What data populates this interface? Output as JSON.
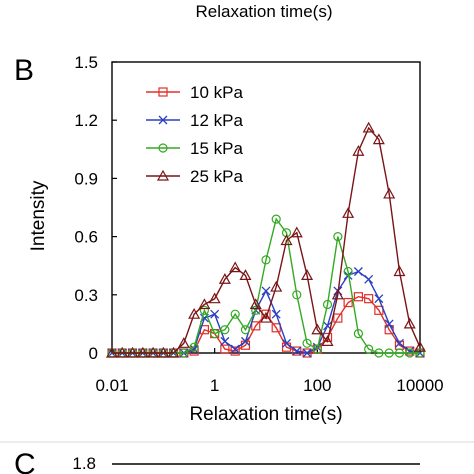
{
  "top_partial": {
    "xlabel": "Relaxation time(s)"
  },
  "panel_b": {
    "label": "B"
  },
  "panel_c": {
    "label": "C",
    "first_tick": "1.8"
  },
  "colors": {
    "10kPa": "#e0302a",
    "12kPa": "#2a3fbf",
    "15kPa": "#33aa22",
    "25kPa": "#7a1416"
  },
  "chart_data": {
    "type": "line",
    "x_scale": "log",
    "xlabel": "Relaxation time(s)",
    "ylabel": "Intensity",
    "xlim": [
      0.01,
      10000
    ],
    "ylim": [
      0,
      1.5
    ],
    "xticks": [
      0.01,
      1,
      100,
      10000
    ],
    "xtick_labels": [
      "0.01",
      "1",
      "100",
      "10000"
    ],
    "yticks": [
      0,
      0.3,
      0.6,
      0.9,
      1.2,
      1.5
    ],
    "ytick_labels": [
      "0",
      "0.3",
      "0.6",
      "0.9",
      "1.2",
      "1.5"
    ],
    "grid": false,
    "legend_position": "top-left",
    "series": [
      {
        "name": "10 kPa",
        "marker": "square",
        "color_key": "10kPa",
        "x": [
          0.01,
          0.0158,
          0.0251,
          0.0398,
          0.0631,
          0.1,
          0.158,
          0.251,
          0.398,
          0.631,
          1,
          1.58,
          2.51,
          3.98,
          6.31,
          10,
          15.8,
          25.1,
          39.8,
          63.1,
          100,
          158,
          251,
          398,
          631,
          1000,
          1580,
          2510,
          3980,
          6310,
          10000
        ],
        "y": [
          0,
          0,
          0,
          0,
          0,
          0,
          0,
          0,
          0.01,
          0.12,
          0.1,
          0.02,
          0.01,
          0.04,
          0.14,
          0.2,
          0.13,
          0.03,
          0.01,
          0,
          0.02,
          0.08,
          0.18,
          0.26,
          0.29,
          0.28,
          0.22,
          0.12,
          0.04,
          0.01,
          0
        ]
      },
      {
        "name": "12 kPa",
        "marker": "x",
        "color_key": "12kPa",
        "x": [
          0.01,
          0.0158,
          0.0251,
          0.0398,
          0.0631,
          0.1,
          0.158,
          0.251,
          0.398,
          0.631,
          1,
          1.58,
          2.51,
          3.98,
          6.31,
          10,
          15.8,
          25.1,
          39.8,
          63.1,
          100,
          158,
          251,
          398,
          631,
          1000,
          1580,
          2510,
          3980,
          6310,
          10000
        ],
        "y": [
          0,
          0,
          0,
          0,
          0,
          0,
          0,
          0,
          0.02,
          0.18,
          0.2,
          0.06,
          0.02,
          0.06,
          0.22,
          0.32,
          0.2,
          0.05,
          0.01,
          0,
          0.03,
          0.14,
          0.32,
          0.4,
          0.42,
          0.38,
          0.28,
          0.15,
          0.05,
          0.01,
          0
        ]
      },
      {
        "name": "15 kPa",
        "marker": "circle",
        "color_key": "15kPa",
        "x": [
          0.01,
          0.0158,
          0.0251,
          0.0398,
          0.0631,
          0.1,
          0.158,
          0.251,
          0.398,
          0.631,
          1,
          1.58,
          2.51,
          3.98,
          6.31,
          10,
          15.8,
          25.1,
          39.8,
          63.1,
          100,
          158,
          251,
          398,
          631,
          1000,
          1580,
          2510,
          3980,
          6310,
          10000
        ],
        "y": [
          0,
          0,
          0,
          0,
          0,
          0,
          0,
          0,
          0.03,
          0.22,
          0.1,
          0.12,
          0.2,
          0.12,
          0.22,
          0.48,
          0.69,
          0.62,
          0.3,
          0.05,
          0.02,
          0.25,
          0.6,
          0.42,
          0.1,
          0.02,
          0,
          0,
          0,
          0,
          0
        ]
      },
      {
        "name": "25 kPa",
        "marker": "triangle",
        "color_key": "25kPa",
        "x": [
          0.01,
          0.0158,
          0.0251,
          0.0398,
          0.0631,
          0.1,
          0.158,
          0.251,
          0.398,
          0.631,
          1,
          1.58,
          2.51,
          3.98,
          6.31,
          10,
          15.8,
          25.1,
          39.8,
          63.1,
          100,
          158,
          251,
          398,
          631,
          1000,
          1580,
          2510,
          3980,
          6310,
          10000
        ],
        "y": [
          0,
          0,
          0,
          0,
          0,
          0,
          0,
          0.05,
          0.2,
          0.25,
          0.28,
          0.38,
          0.44,
          0.4,
          0.25,
          0.18,
          0.34,
          0.58,
          0.62,
          0.4,
          0.12,
          0.06,
          0.3,
          0.72,
          1.04,
          1.16,
          1.1,
          0.82,
          0.42,
          0.15,
          0.03
        ]
      }
    ]
  }
}
